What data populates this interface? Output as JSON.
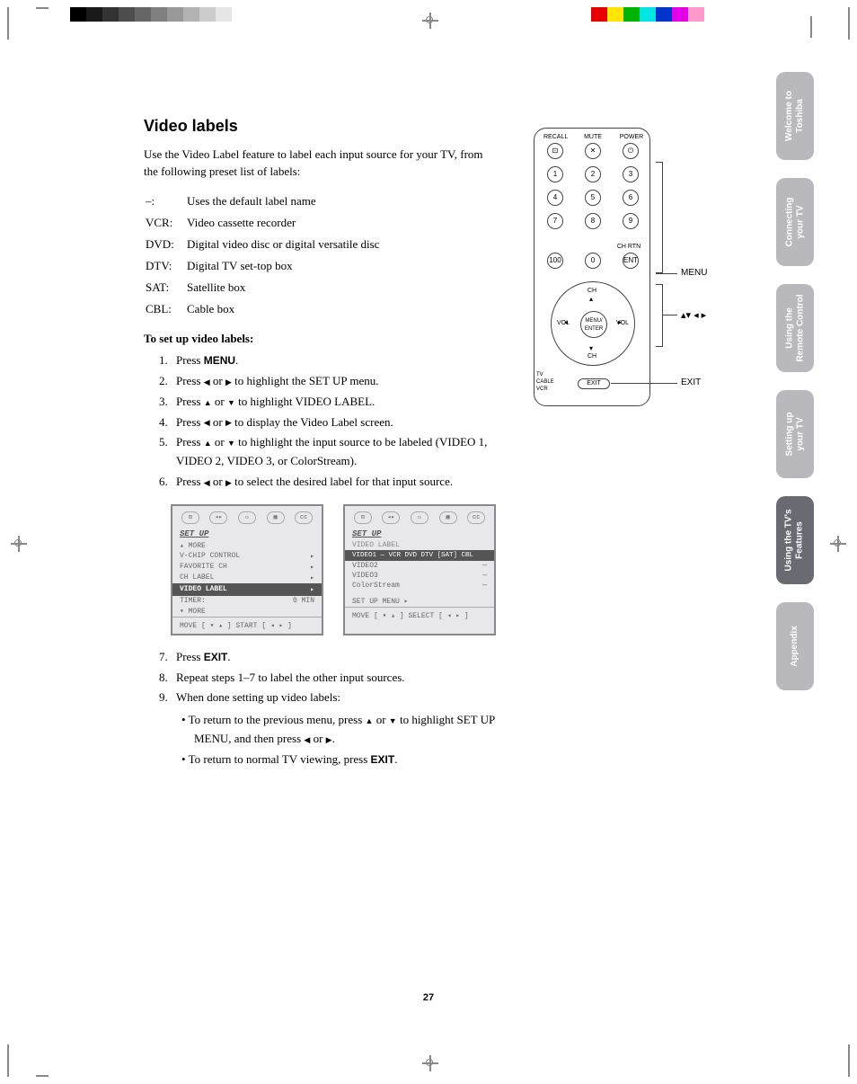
{
  "title": "Video labels",
  "intro": "Use the Video Label feature to label each input source for your TV, from the following preset list of labels:",
  "labels": [
    {
      "k": "–:",
      "v": "Uses the default label name"
    },
    {
      "k": "VCR:",
      "v": "Video cassette recorder"
    },
    {
      "k": "DVD:",
      "v": "Digital video disc or digital versatile disc"
    },
    {
      "k": "DTV:",
      "v": "Digital TV set-top box"
    },
    {
      "k": "SAT:",
      "v": "Satellite box"
    },
    {
      "k": "CBL:",
      "v": "Cable box"
    }
  ],
  "setup_heading": "To set up video labels:",
  "steps": {
    "s1a": "Press ",
    "s1b": "MENU",
    "s1c": ".",
    "s2a": "Press ",
    "s2b": " or ",
    "s2c": " to highlight the SET UP menu.",
    "s3a": "Press ",
    "s3b": " or ",
    "s3c": " to highlight VIDEO LABEL.",
    "s4a": "Press ",
    "s4b": " or ",
    "s4c": " to display the Video Label screen.",
    "s5a": "Press ",
    "s5b": " or ",
    "s5c": " to highlight the input source to be labeled (VIDEO 1, VIDEO 2, VIDEO 3, or ColorStream).",
    "s6a": "Press ",
    "s6b": " or ",
    "s6c": " to select the desired label for that input source.",
    "s7a": "Press ",
    "s7b": "EXIT",
    "s7c": ".",
    "s8": "Repeat steps 1–7 to label the other input sources.",
    "s9": "When done setting up video labels:",
    "s9aa": "To return to the previous menu, press ",
    "s9ab": " or ",
    "s9ac": " to highlight SET UP MENU, and then press ",
    "s9ad": " or ",
    "s9ae": ".",
    "s9b": "To return to normal TV viewing, press ",
    "s9bb": "EXIT",
    "s9bc": "."
  },
  "osd1": {
    "title": "SET UP",
    "rows": [
      {
        "l": "▴ MORE",
        "r": ""
      },
      {
        "l": "V-CHIP CONTROL",
        "r": "▸"
      },
      {
        "l": "FAVORITE CH",
        "r": "▸"
      },
      {
        "l": "CH LABEL",
        "r": "▸"
      }
    ],
    "highlight": {
      "l": "VIDEO LABEL",
      "r": "▸"
    },
    "rows2": [
      {
        "l": "TIMER:",
        "r": "0 MIN"
      },
      {
        "l": "▾ MORE",
        "r": ""
      }
    ],
    "foot": "MOVE [ ▾ ▴ ]      START [ ◂ ▸ ]"
  },
  "osd2": {
    "title": "SET UP",
    "sub": "VIDEO LABEL",
    "highlight": "VIDEO1    — VCR DVD DTV [SAT] CBL",
    "rows": [
      {
        "l": "VIDEO2",
        "r": "—"
      },
      {
        "l": "VIDEO3",
        "r": "—"
      },
      {
        "l": "ColorStream",
        "r": "—"
      }
    ],
    "menu": "SET UP MENU  ▸",
    "foot": "MOVE [ ▾ ▴ ]     SELECT [ ◂ ▸ ]"
  },
  "remote": {
    "toplabels": {
      "recall": "RECALL",
      "mute": "MUTE",
      "power": "POWER"
    },
    "num": [
      "1",
      "2",
      "3",
      "4",
      "5",
      "6",
      "7",
      "8",
      "9",
      "100",
      "0",
      "ENT"
    ],
    "chrtn": "CH RTN",
    "dpad": {
      "center": "MENU/\nENTER",
      "up": "CH",
      "down": "CH",
      "left": "VOL",
      "right": "VOL"
    },
    "switch": "TV\nCABLE\nVCR",
    "exit": "EXIT"
  },
  "callouts": {
    "menu": "MENU",
    "arrows": "▴▾ ◂ ▸",
    "exit": "EXIT"
  },
  "tabs": [
    {
      "t": "Welcome to\nToshiba",
      "active": false
    },
    {
      "t": "Connecting\nyour TV",
      "active": false
    },
    {
      "t": "Using the\nRemote Control",
      "active": false
    },
    {
      "t": "Setting up\nyour TV",
      "active": false
    },
    {
      "t": "Using the TV's\nFeatures",
      "active": true
    },
    {
      "t": "Appendix",
      "active": false
    }
  ],
  "page_number": "27",
  "colorbars": {
    "left": [
      "#000",
      "#1a1a1a",
      "#333",
      "#4d4d4d",
      "#666",
      "#808080",
      "#999",
      "#b3b3b3",
      "#ccc",
      "#e6e6e6",
      "#fff"
    ],
    "right": [
      "#e60000",
      "#ffe600",
      "#00b300",
      "#00e6e6",
      "#0033cc",
      "#e600e6",
      "#ff99cc"
    ]
  }
}
